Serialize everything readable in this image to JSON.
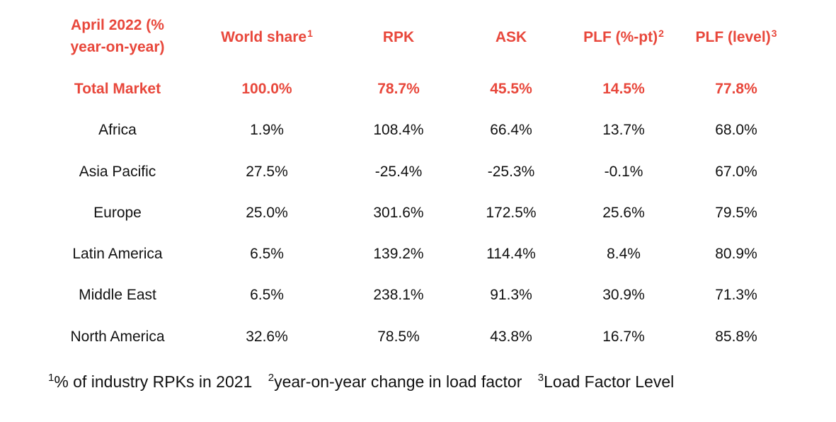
{
  "header": {
    "period": "April 2022 (% year-on-year)",
    "columns": [
      {
        "label": "World share",
        "note": "1"
      },
      {
        "label": "RPK",
        "note": ""
      },
      {
        "label": "ASK",
        "note": ""
      },
      {
        "label": "PLF (%-pt)",
        "note": "2"
      },
      {
        "label": "PLF (level)",
        "note": "3"
      }
    ]
  },
  "rows": [
    {
      "region": "Total Market",
      "world_share": "100.0%",
      "rpk": "78.7%",
      "ask": "45.5%",
      "plf_pt": "14.5%",
      "plf_level": "77.8%"
    },
    {
      "region": "Africa",
      "world_share": "1.9%",
      "rpk": "108.4%",
      "ask": "66.4%",
      "plf_pt": "13.7%",
      "plf_level": "68.0%"
    },
    {
      "region": "Asia Pacific",
      "world_share": "27.5%",
      "rpk": "-25.4%",
      "ask": "-25.3%",
      "plf_pt": "-0.1%",
      "plf_level": "67.0%"
    },
    {
      "region": "Europe",
      "world_share": "25.0%",
      "rpk": "301.6%",
      "ask": "172.5%",
      "plf_pt": "25.6%",
      "plf_level": "79.5%"
    },
    {
      "region": "Latin America",
      "world_share": "6.5%",
      "rpk": "139.2%",
      "ask": "114.4%",
      "plf_pt": "8.4%",
      "plf_level": "80.9%"
    },
    {
      "region": "Middle East",
      "world_share": "6.5%",
      "rpk": "238.1%",
      "ask": "91.3%",
      "plf_pt": "30.9%",
      "plf_level": "71.3%"
    },
    {
      "region": "North America",
      "world_share": "32.6%",
      "rpk": "78.5%",
      "ask": "43.8%",
      "plf_pt": "16.7%",
      "plf_level": "85.8%"
    }
  ],
  "footnotes": [
    {
      "mark": "1",
      "text": "% of industry RPKs in 2021"
    },
    {
      "mark": "2",
      "text": "year-on-year change in load factor"
    },
    {
      "mark": "3",
      "text": "Load Factor Level"
    }
  ],
  "colors": {
    "accent": "#e8473b",
    "text": "#111111",
    "background": "#ffffff"
  }
}
